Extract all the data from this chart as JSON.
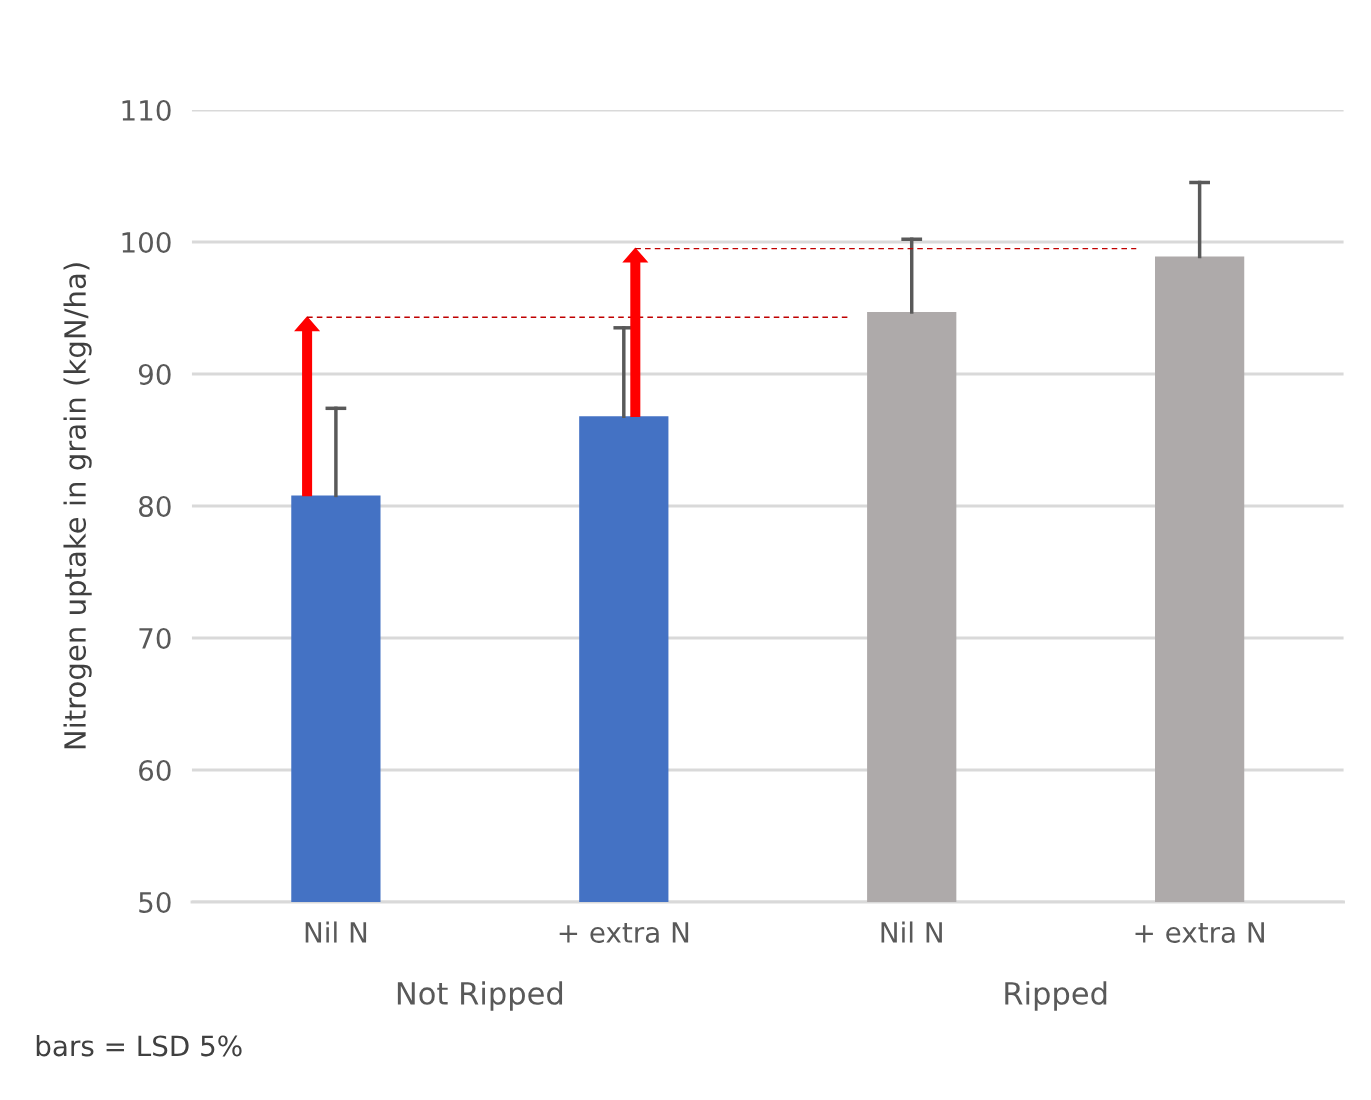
{
  "chart_data": {
    "type": "bar",
    "ylabel": "Nitrogen uptake in grain (kgN/ha)",
    "categories": [
      "Nil N",
      "+ extra N",
      "Nil N",
      "+ extra N"
    ],
    "values": [
      80.8,
      86.8,
      94.7,
      98.9
    ],
    "colors": [
      "#4472c4",
      "#4472c4",
      "#aeaaaa",
      "#aeaaaa"
    ],
    "errors": [
      [
        80.8,
        87.4
      ],
      [
        86.8,
        93.5
      ],
      [
        94.7,
        100.2
      ],
      [
        98.9,
        104.5
      ]
    ],
    "ref_lines": [
      {
        "axis": "y",
        "value": 94.3,
        "label": null,
        "color": "#c00000",
        "line_style": "dashed"
      },
      {
        "axis": "y",
        "value": 99.5,
        "label": null,
        "color": "#c00000",
        "line_style": "dashed"
      }
    ],
    "ylim": [
      50,
      110
    ],
    "yticks": [
      50,
      60,
      70,
      80,
      90,
      100,
      110
    ],
    "grid": "y",
    "annotations": [
      "Not Ripped",
      "Ripped",
      "bars = LSD 5%"
    ]
  }
}
